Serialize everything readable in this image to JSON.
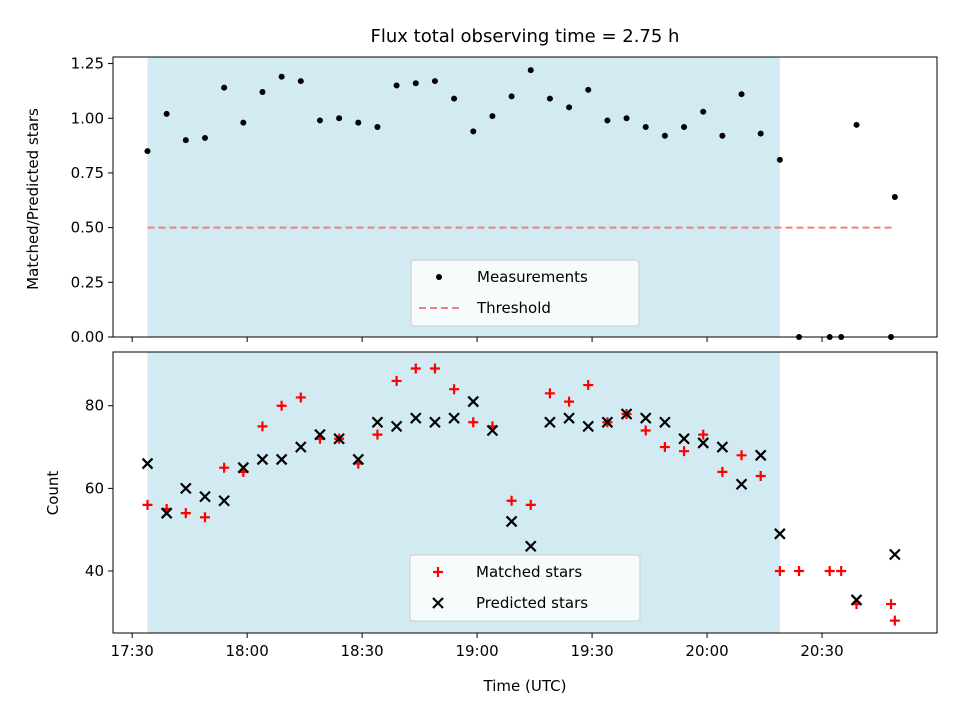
{
  "chart_data": [
    {
      "type": "scatter",
      "title": "Flux total observing time = 2.75 h",
      "xlabel": "",
      "ylabel": "Matched/Predicted stars",
      "xlim": [
        "17:25",
        "21:00"
      ],
      "ylim": [
        0,
        1.28
      ],
      "x_ticks": [
        "17:30",
        "18:00",
        "18:30",
        "19:00",
        "19:30",
        "20:00",
        "20:30"
      ],
      "y_ticks": [
        "0.00",
        "0.25",
        "0.50",
        "0.75",
        "1.00",
        "1.25"
      ],
      "shaded_range": [
        "17:34",
        "20:19"
      ],
      "shade_color": "#add8e6",
      "legend_position": "lower center",
      "series": [
        {
          "name": "Measurements",
          "marker": "dot",
          "color": "#000000",
          "points": [
            [
              "17:34",
              0.85
            ],
            [
              "17:39",
              1.02
            ],
            [
              "17:44",
              0.9
            ],
            [
              "17:49",
              0.91
            ],
            [
              "17:54",
              1.14
            ],
            [
              "17:59",
              0.98
            ],
            [
              "18:04",
              1.12
            ],
            [
              "18:09",
              1.19
            ],
            [
              "18:14",
              1.17
            ],
            [
              "18:19",
              0.99
            ],
            [
              "18:24",
              1.0
            ],
            [
              "18:29",
              0.98
            ],
            [
              "18:34",
              0.96
            ],
            [
              "18:39",
              1.15
            ],
            [
              "18:44",
              1.16
            ],
            [
              "18:49",
              1.17
            ],
            [
              "18:54",
              1.09
            ],
            [
              "18:59",
              0.94
            ],
            [
              "19:04",
              1.01
            ],
            [
              "19:09",
              1.1
            ],
            [
              "19:14",
              1.22
            ],
            [
              "19:19",
              1.09
            ],
            [
              "19:24",
              1.05
            ],
            [
              "19:29",
              1.13
            ],
            [
              "19:34",
              0.99
            ],
            [
              "19:39",
              1.0
            ],
            [
              "19:44",
              0.96
            ],
            [
              "19:49",
              0.92
            ],
            [
              "19:54",
              0.96
            ],
            [
              "19:59",
              1.03
            ],
            [
              "20:04",
              0.92
            ],
            [
              "20:09",
              1.11
            ],
            [
              "20:14",
              0.93
            ],
            [
              "20:19",
              0.81
            ],
            [
              "20:24",
              0.0
            ],
            [
              "20:32",
              0.0
            ],
            [
              "20:35",
              0.0
            ],
            [
              "20:39",
              0.97
            ],
            [
              "20:48",
              0.0
            ],
            [
              "20:49",
              0.64
            ]
          ]
        },
        {
          "name": "Threshold",
          "marker": "dashed-line",
          "color": "#f08080",
          "points": [
            [
              "17:34",
              0.5
            ],
            [
              "20:49",
              0.5
            ]
          ]
        }
      ]
    },
    {
      "type": "scatter",
      "title": "",
      "xlabel": "Time (UTC)",
      "ylabel": "Count",
      "xlim": [
        "17:25",
        "21:00"
      ],
      "ylim": [
        25,
        93
      ],
      "x_ticks": [
        "17:30",
        "18:00",
        "18:30",
        "19:00",
        "19:30",
        "20:00",
        "20:30"
      ],
      "y_ticks": [
        "40",
        "60",
        "80"
      ],
      "shaded_range": [
        "17:34",
        "20:19"
      ],
      "shade_color": "#add8e6",
      "legend_position": "lower center",
      "series": [
        {
          "name": "Matched stars",
          "marker": "plus",
          "color": "#ff0000",
          "points": [
            [
              "17:34",
              56
            ],
            [
              "17:39",
              55
            ],
            [
              "17:44",
              54
            ],
            [
              "17:49",
              53
            ],
            [
              "17:54",
              65
            ],
            [
              "17:59",
              64
            ],
            [
              "18:04",
              75
            ],
            [
              "18:09",
              80
            ],
            [
              "18:14",
              82
            ],
            [
              "18:19",
              72
            ],
            [
              "18:24",
              72
            ],
            [
              "18:29",
              66
            ],
            [
              "18:34",
              73
            ],
            [
              "18:39",
              86
            ],
            [
              "18:44",
              89
            ],
            [
              "18:49",
              89
            ],
            [
              "18:54",
              84
            ],
            [
              "18:59",
              76
            ],
            [
              "19:04",
              75
            ],
            [
              "19:09",
              57
            ],
            [
              "19:14",
              56
            ],
            [
              "19:19",
              83
            ],
            [
              "19:24",
              81
            ],
            [
              "19:29",
              85
            ],
            [
              "19:34",
              76
            ],
            [
              "19:39",
              78
            ],
            [
              "19:44",
              74
            ],
            [
              "19:49",
              70
            ],
            [
              "19:54",
              69
            ],
            [
              "19:59",
              73
            ],
            [
              "20:04",
              64
            ],
            [
              "20:09",
              68
            ],
            [
              "20:14",
              63
            ],
            [
              "20:19",
              40
            ],
            [
              "20:24",
              40
            ],
            [
              "20:32",
              40
            ],
            [
              "20:35",
              40
            ],
            [
              "20:39",
              32
            ],
            [
              "20:48",
              32
            ],
            [
              "20:49",
              28
            ]
          ]
        },
        {
          "name": "Predicted stars",
          "marker": "x",
          "color": "#000000",
          "points": [
            [
              "17:34",
              66
            ],
            [
              "17:39",
              54
            ],
            [
              "17:44",
              60
            ],
            [
              "17:49",
              58
            ],
            [
              "17:54",
              57
            ],
            [
              "17:59",
              65
            ],
            [
              "18:04",
              67
            ],
            [
              "18:09",
              67
            ],
            [
              "18:14",
              70
            ],
            [
              "18:19",
              73
            ],
            [
              "18:24",
              72
            ],
            [
              "18:29",
              67
            ],
            [
              "18:34",
              76
            ],
            [
              "18:39",
              75
            ],
            [
              "18:44",
              77
            ],
            [
              "18:49",
              76
            ],
            [
              "18:54",
              77
            ],
            [
              "18:59",
              81
            ],
            [
              "19:04",
              74
            ],
            [
              "19:09",
              52
            ],
            [
              "19:14",
              46
            ],
            [
              "19:19",
              76
            ],
            [
              "19:24",
              77
            ],
            [
              "19:29",
              75
            ],
            [
              "19:34",
              76
            ],
            [
              "19:39",
              78
            ],
            [
              "19:44",
              77
            ],
            [
              "19:49",
              76
            ],
            [
              "19:54",
              72
            ],
            [
              "19:59",
              71
            ],
            [
              "20:04",
              70
            ],
            [
              "20:09",
              61
            ],
            [
              "20:14",
              68
            ],
            [
              "20:19",
              49
            ],
            [
              "20:39",
              33
            ],
            [
              "20:49",
              44
            ]
          ]
        }
      ]
    }
  ]
}
